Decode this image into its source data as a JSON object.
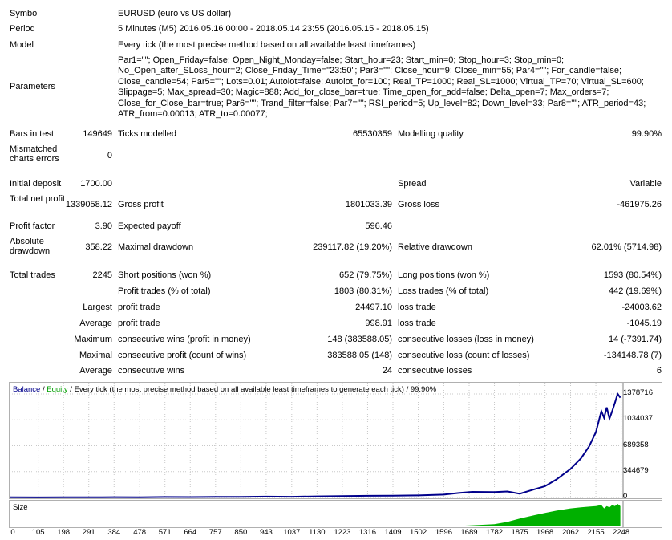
{
  "report": {
    "symbol_label": "Symbol",
    "symbol_value": "EURUSD (euro vs US dollar)",
    "period_label": "Period",
    "period_value": "5 Minutes (M5) 2016.05.16 00:00 - 2018.05.14 23:55 (2016.05.15 - 2018.05.15)",
    "model_label": "Model",
    "model_value": "Every tick (the most precise method based on all available least timeframes)",
    "parameters_label": "Parameters",
    "parameters_lines": [
      "Par1=\"\"; Open_Friday=false; Open_Night_Monday=false; Start_hour=23; Start_min=0; Stop_hour=3; Stop_min=0;",
      "No_Open_after_SLoss_hour=2; Close_Friday_Time=\"23:50\"; Par3=\"\"; Close_hour=9; Close_min=55; Par4=\"\"; For_candle=false;",
      "Close_candle=54; Par5=\"\"; Lots=0.01; Autolot=false; Autolot_for=100; Real_TP=1000; Real_SL=1000; Virtual_TP=70; Virtual_SL=600;",
      "Slippage=5; Max_spread=30; Magic=888; Add_for_close_bar=true; Time_open_for_add=false; Delta_open=7; Max_orders=7;",
      "Close_for_Close_bar=true; Par6=\"\"; Trand_filter=false; Par7=\"\"; RSI_period=5; Up_level=82; Down_level=33; Par8=\"\"; ATR_period=43;",
      "ATR_from=0.00013; ATR_to=0.00077;"
    ],
    "bars_label": "Bars in test",
    "bars_value": "149649",
    "ticks_label": "Ticks modelled",
    "ticks_value": "65530359",
    "quality_label": "Modelling quality",
    "quality_value": "99.90%",
    "mismatch_label": "Mismatched charts errors",
    "mismatch_value": "0",
    "deposit_label": "Initial deposit",
    "deposit_value": "1700.00",
    "spread_label": "Spread",
    "spread_value": "Variable",
    "net_label": "Total net profit",
    "net_value": "1339058.12",
    "gross_profit_label": "Gross profit",
    "gross_profit_value": "1801033.39",
    "gross_loss_label": "Gross loss",
    "gross_loss_value": "-461975.26",
    "pf_label": "Profit factor",
    "pf_value": "3.90",
    "payoff_label": "Expected payoff",
    "payoff_value": "596.46",
    "abs_dd_label": "Absolute drawdown",
    "abs_dd_value": "358.22",
    "max_dd_label": "Maximal drawdown",
    "max_dd_value": "239117.82 (19.20%)",
    "rel_dd_label": "Relative drawdown",
    "rel_dd_value": "62.01% (5714.98)",
    "trades_label": "Total trades",
    "trades_value": "2245",
    "short_label": "Short positions (won %)",
    "short_value": "652 (79.75%)",
    "long_label": "Long positions (won %)",
    "long_value": "1593 (80.54%)",
    "profit_trades_label": "Profit trades (% of total)",
    "profit_trades_value": "1803 (80.31%)",
    "loss_trades_label": "Loss trades (% of total)",
    "loss_trades_value": "442 (19.69%)",
    "largest_label": "Largest",
    "largest_profit_label": "profit trade",
    "largest_profit_value": "24497.10",
    "largest_loss_label": "loss trade",
    "largest_loss_value": "-24003.62",
    "average_label": "Average",
    "average_profit_label": "profit trade",
    "average_profit_value": "998.91",
    "average_loss_label": "loss trade",
    "average_loss_value": "-1045.19",
    "maximum_label": "Maximum",
    "cons_wins_money_label": "consecutive wins (profit in money)",
    "cons_wins_money_value": "148 (383588.05)",
    "cons_losses_money_label": "consecutive losses (loss in money)",
    "cons_losses_money_value": "14 (-7391.74)",
    "maximal_label": "Maximal",
    "cons_profit_count_label": "consecutive profit (count of wins)",
    "cons_profit_count_value": "383588.05 (148)",
    "cons_loss_count_label": "consecutive loss (count of losses)",
    "cons_loss_count_value": "-134148.78 (7)",
    "average2_label": "Average",
    "cons_wins_label": "consecutive wins",
    "cons_wins_value": "24",
    "cons_losses_label": "consecutive losses",
    "cons_losses_value": "6"
  },
  "chart_data": {
    "type": "line",
    "title_balance": "Balance",
    "title_sep1": " / ",
    "title_equity": "Equity",
    "title_rest": " / Every tick (the most precise method based on all available least timeframes to generate each tick) / 99.90%",
    "balance_color": "#00008b",
    "equity_color": "#00a000",
    "size_label": "Size",
    "size_color": "#00b000",
    "yticks": [
      "1378716",
      "1034037",
      "689358",
      "344679",
      "0"
    ],
    "ytick_values": [
      1378716,
      1034037,
      689358,
      344679,
      0
    ],
    "xticks": [
      "0",
      "105",
      "198",
      "291",
      "384",
      "478",
      "571",
      "664",
      "757",
      "850",
      "943",
      "1037",
      "1130",
      "1223",
      "1316",
      "1409",
      "1502",
      "1596",
      "1689",
      "1782",
      "1875",
      "1968",
      "2062",
      "2155",
      "2248"
    ],
    "xtick_values": [
      0,
      105,
      198,
      291,
      384,
      478,
      571,
      664,
      757,
      850,
      943,
      1037,
      1130,
      1223,
      1316,
      1409,
      1502,
      1596,
      1689,
      1782,
      1875,
      1968,
      2062,
      2155,
      2248
    ],
    "xlim": [
      0,
      2255
    ],
    "ylim": [
      0,
      1378716
    ],
    "x": [
      0,
      105,
      198,
      291,
      384,
      478,
      571,
      664,
      757,
      850,
      943,
      1037,
      1130,
      1223,
      1316,
      1409,
      1502,
      1596,
      1650,
      1700,
      1782,
      1830,
      1875,
      1930,
      1968,
      2010,
      2062,
      2100,
      2130,
      2155,
      2175,
      2185,
      2195,
      2205,
      2215,
      2225,
      2235,
      2245
    ],
    "balance": [
      1700,
      1500,
      3000,
      2000,
      4000,
      3500,
      6000,
      5000,
      8000,
      7000,
      12000,
      10000,
      15000,
      18000,
      22000,
      25000,
      28000,
      38000,
      60000,
      75000,
      72000,
      80000,
      50000,
      110000,
      150000,
      240000,
      380000,
      520000,
      680000,
      870000,
      1150000,
      1060000,
      1200000,
      1050000,
      1150000,
      1260000,
      1378716,
      1330000
    ],
    "size": [
      0,
      0,
      0,
      0,
      0,
      0,
      0,
      0,
      0,
      0,
      0,
      0,
      0,
      0,
      0,
      0,
      0,
      0,
      0.02,
      0.05,
      0.1,
      0.2,
      0.35,
      0.5,
      0.6,
      0.7,
      0.8,
      0.85,
      0.88,
      0.9,
      0.95,
      0.8,
      0.9,
      0.85,
      0.95,
      0.9,
      1.0,
      0.9
    ]
  }
}
